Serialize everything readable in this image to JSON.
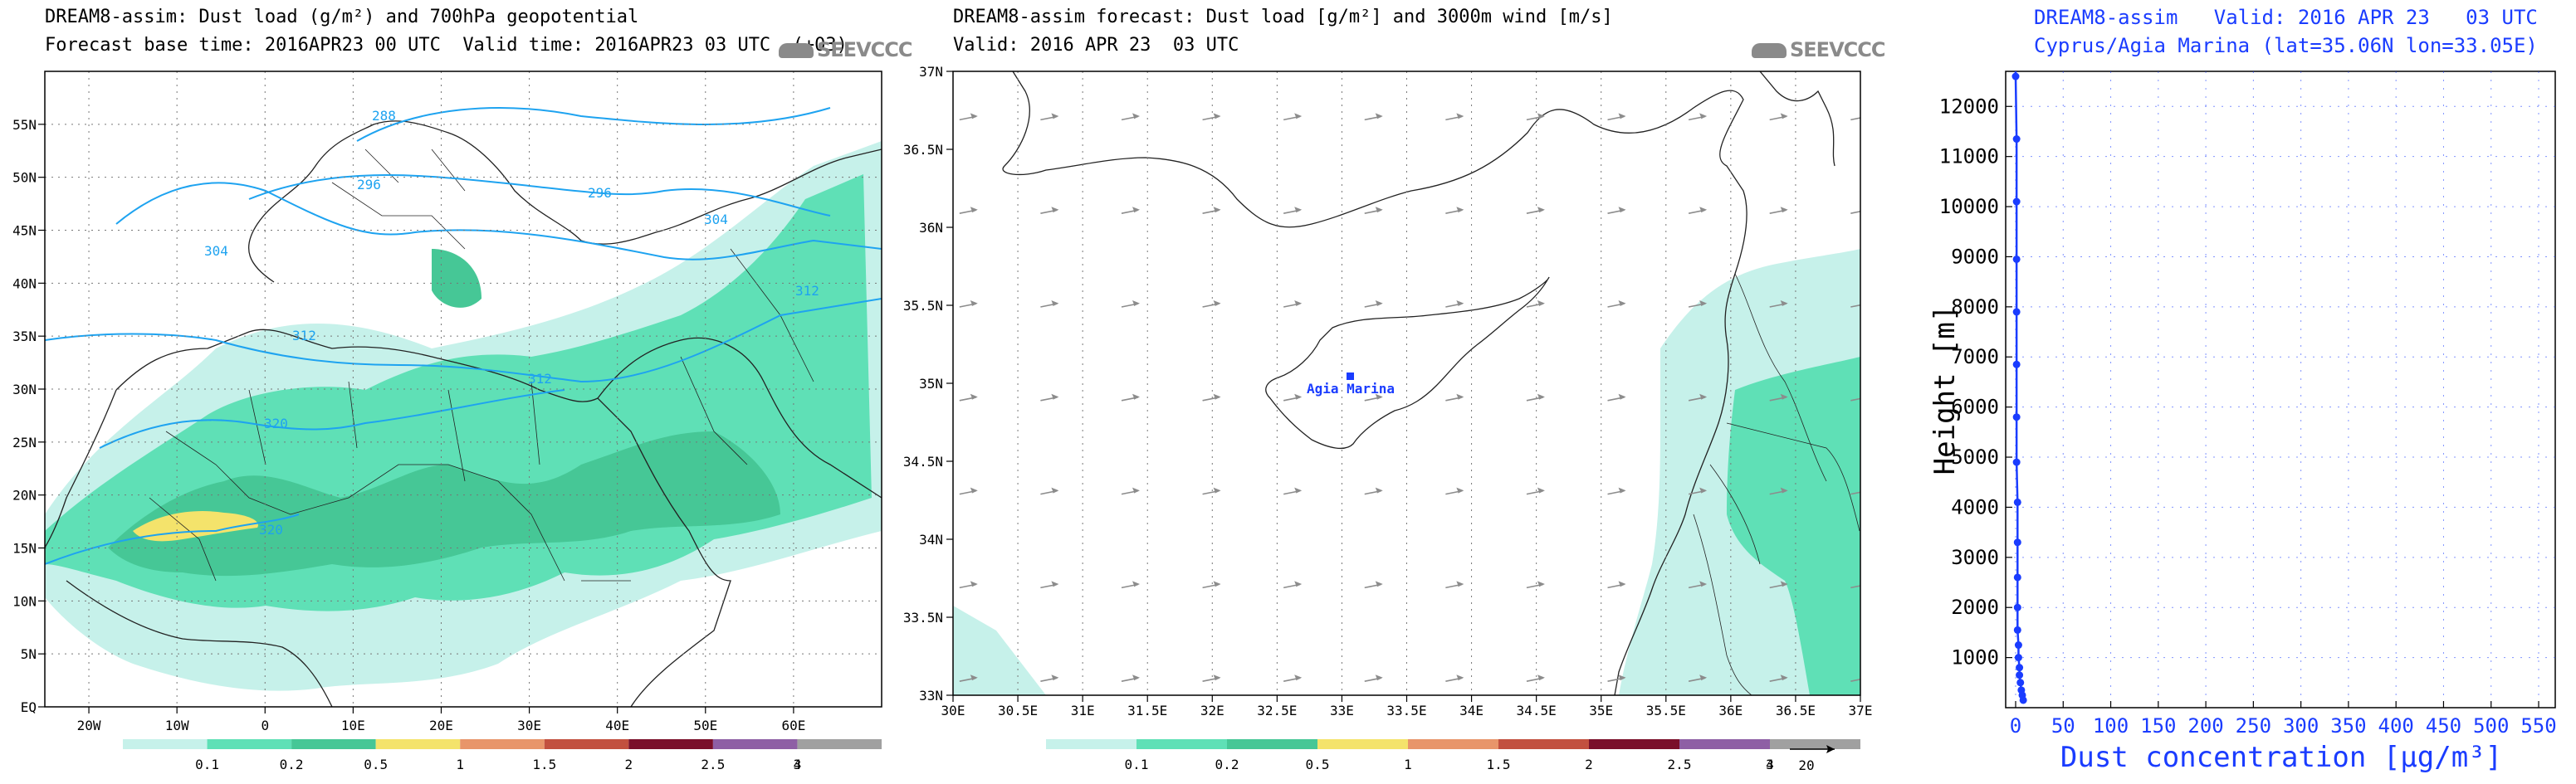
{
  "panel1": {
    "title_line1": "DREAM8-assim: Dust load (g/m²) and 700hPa geopotential",
    "title_line2": "Forecast base time: 2016APR23 00 UTC  Valid time: 2016APR23 03 UTC  (+03)",
    "logo": "SEEVCCC",
    "lat_labels": [
      "55N",
      "50N",
      "45N",
      "40N",
      "35N",
      "30N",
      "25N",
      "20N",
      "15N",
      "10N",
      "5N",
      "EQ"
    ],
    "lon_labels": [
      "20W",
      "10W",
      "0",
      "10E",
      "20E",
      "30E",
      "40E",
      "50E",
      "60E"
    ],
    "contour_labels": [
      "288",
      "296",
      "296",
      "304",
      "304",
      "312",
      "312",
      "312",
      "320",
      "320"
    ],
    "colorbar_labels": [
      "0.1",
      "0.2",
      "0.5",
      "1",
      "1.5",
      "2",
      "2.5",
      "3",
      "4"
    ]
  },
  "panel2": {
    "title_line1": "DREAM8-assim forecast: Dust load [g/m²] and 3000m wind [m/s]",
    "title_line2": "Valid: 2016 APR 23  03 UTC",
    "logo": "SEEVCCC",
    "lat_labels": [
      "37N",
      "36.5N",
      "36N",
      "35.5N",
      "35N",
      "34.5N",
      "34N",
      "33.5N",
      "33N"
    ],
    "lon_labels": [
      "30E",
      "30.5E",
      "31E",
      "31.5E",
      "32E",
      "32.5E",
      "33E",
      "33.5E",
      "34E",
      "34.5E",
      "35E",
      "35.5E",
      "36E",
      "36.5E",
      "37E"
    ],
    "station_label": "Agia Marina",
    "colorbar_labels": [
      "0.1",
      "0.2",
      "0.5",
      "1",
      "1.5",
      "2",
      "2.5",
      "3",
      "4"
    ],
    "wind_ref_label": "20"
  },
  "panel3": {
    "title_line1": "DREAM8-assim   Valid: 2016 APR 23   03 UTC",
    "title_line2": "Cyprus/Agia Marina (lat=35.06N lon=33.05E)"
  },
  "colors": {
    "scale": [
      "#c6f1ea",
      "#5fe0b6",
      "#46c796",
      "#f4e36b",
      "#e8956a",
      "#c2503f",
      "#7a0f2a",
      "#8e5fa5",
      "#a0a0a0"
    ],
    "geopotential": "#1ea3f0",
    "profile": "#1a3cff",
    "map_outline": "#222222",
    "wind_arrow": "#8c8c8c"
  },
  "chart_data": [
    {
      "type": "heatmap",
      "title": "DREAM8-assim: Dust load (g/m²) and 700hPa geopotential",
      "xlim": [
        -25,
        70
      ],
      "ylim": [
        0,
        60
      ],
      "xticks": [
        "20W",
        "10W",
        "0",
        "10E",
        "20E",
        "30E",
        "40E",
        "50E",
        "60E"
      ],
      "yticks": [
        "EQ",
        "5N",
        "10N",
        "15N",
        "20N",
        "25N",
        "30N",
        "35N",
        "40N",
        "45N",
        "50N",
        "55N"
      ],
      "legend_levels": [
        0.1,
        0.2,
        0.5,
        1,
        1.5,
        2,
        2.5,
        3,
        4
      ],
      "contour_values": [
        288,
        296,
        304,
        312,
        320
      ]
    },
    {
      "type": "heatmap",
      "title": "DREAM8-assim forecast: Dust load [g/m²] and 3000m wind [m/s]",
      "xlim": [
        30,
        37
      ],
      "ylim": [
        33,
        37
      ],
      "xticks": [
        "30E",
        "30.5E",
        "31E",
        "31.5E",
        "32E",
        "32.5E",
        "33E",
        "33.5E",
        "34E",
        "34.5E",
        "35E",
        "35.5E",
        "36E",
        "36.5E",
        "37E"
      ],
      "yticks": [
        "33N",
        "33.5N",
        "34N",
        "34.5N",
        "35N",
        "35.5N",
        "36N",
        "36.5N",
        "37N"
      ],
      "legend_levels": [
        0.1,
        0.2,
        0.5,
        1,
        1.5,
        2,
        2.5,
        3,
        4
      ],
      "station": {
        "name": "Agia Marina",
        "lon": 33.05,
        "lat": 35.06
      },
      "wind_reference": 20
    },
    {
      "type": "line",
      "title": "DREAM8-assim   Valid: 2016 APR 23   03 UTC",
      "subtitle": "Cyprus/Agia Marina (lat=35.06N lon=33.05E)",
      "xlabel": "Dust concentration [µg/m³]",
      "ylabel": "Height [m]",
      "xlim": [
        0,
        550
      ],
      "ylim": [
        0,
        12700
      ],
      "xticks": [
        0,
        50,
        100,
        150,
        200,
        250,
        300,
        350,
        400,
        450,
        500,
        550
      ],
      "yticks": [
        1000,
        2000,
        3000,
        4000,
        5000,
        6000,
        7000,
        8000,
        9000,
        10000,
        11000,
        12000
      ],
      "series": [
        {
          "x": [
            8,
            7,
            6,
            5,
            4,
            4,
            3,
            3,
            2,
            2,
            2,
            2,
            2,
            1,
            1,
            1,
            1,
            1,
            1,
            1,
            0,
            0
          ],
          "y": [
            150,
            250,
            350,
            500,
            650,
            800,
            1000,
            1250,
            1550,
            2000,
            2600,
            3300,
            4100,
            4900,
            5800,
            6850,
            7900,
            8950,
            10100,
            11350,
            12600,
            12700
          ]
        }
      ]
    }
  ]
}
